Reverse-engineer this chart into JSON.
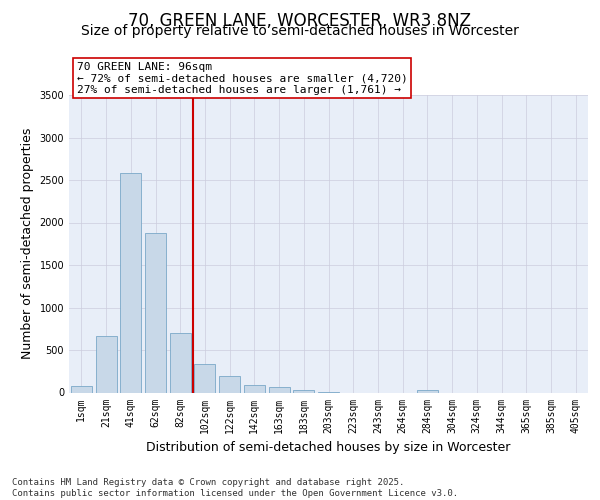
{
  "title": "70, GREEN LANE, WORCESTER, WR3 8NZ",
  "subtitle": "Size of property relative to semi-detached houses in Worcester",
  "xlabel": "Distribution of semi-detached houses by size in Worcester",
  "ylabel": "Number of semi-detached properties",
  "categories": [
    "1sqm",
    "21sqm",
    "41sqm",
    "62sqm",
    "82sqm",
    "102sqm",
    "122sqm",
    "142sqm",
    "163sqm",
    "183sqm",
    "203sqm",
    "223sqm",
    "243sqm",
    "264sqm",
    "284sqm",
    "304sqm",
    "324sqm",
    "344sqm",
    "365sqm",
    "385sqm",
    "405sqm"
  ],
  "values": [
    80,
    660,
    2580,
    1880,
    700,
    340,
    190,
    90,
    70,
    30,
    5,
    0,
    0,
    0,
    30,
    0,
    0,
    0,
    0,
    0,
    0
  ],
  "bar_color": "#c8d8e8",
  "bar_edge_color": "#7aa8c8",
  "vline_color": "#cc0000",
  "annotation_text": "70 GREEN LANE: 96sqm\n← 72% of semi-detached houses are smaller (4,720)\n27% of semi-detached houses are larger (1,761) →",
  "annotation_box_color": "#ffffff",
  "annotation_box_edge": "#cc0000",
  "ylim": [
    0,
    3500
  ],
  "yticks": [
    0,
    500,
    1000,
    1500,
    2000,
    2500,
    3000,
    3500
  ],
  "background_color": "#e8eef8",
  "footer_text": "Contains HM Land Registry data © Crown copyright and database right 2025.\nContains public sector information licensed under the Open Government Licence v3.0.",
  "title_fontsize": 12,
  "subtitle_fontsize": 10,
  "label_fontsize": 9,
  "tick_fontsize": 7,
  "footer_fontsize": 6.5,
  "vline_bin_index": 4
}
